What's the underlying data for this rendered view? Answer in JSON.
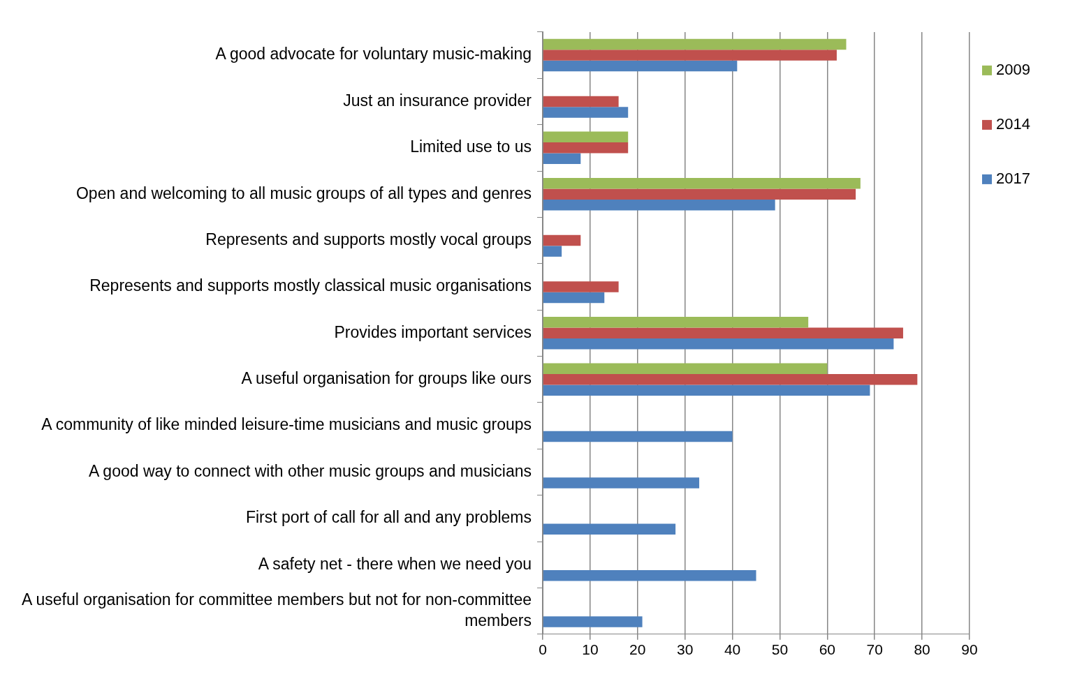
{
  "chart_data": {
    "type": "bar",
    "orientation": "horizontal",
    "categories": [
      "A good advocate for voluntary music-making",
      "Just an insurance provider",
      "Limited use to us",
      "Open and welcoming to all music groups of all types and genres",
      "Represents and supports mostly vocal groups",
      "Represents and supports mostly classical music organisations",
      "Provides important services",
      "A useful organisation for groups like ours",
      "A community of like minded leisure-time musicians and music groups",
      "A good way to connect with other music groups and musicians",
      "First port of call for all and any problems",
      "A safety net - there when we need you",
      "A useful organisation for committee members but not for non-committee members"
    ],
    "series": [
      {
        "name": "2009",
        "color": "#9bbb59",
        "values": [
          64,
          null,
          18,
          67,
          null,
          null,
          56,
          60,
          null,
          null,
          null,
          null,
          null
        ]
      },
      {
        "name": "2014",
        "color": "#c0504d",
        "values": [
          62,
          16,
          18,
          66,
          8,
          16,
          76,
          79,
          null,
          null,
          null,
          null,
          null
        ]
      },
      {
        "name": "2017",
        "color": "#4f81bd",
        "values": [
          41,
          18,
          8,
          49,
          4,
          13,
          74,
          69,
          40,
          33,
          28,
          45,
          21
        ]
      }
    ],
    "xlim": [
      0,
      90
    ],
    "xticks": [
      0,
      10,
      20,
      30,
      40,
      50,
      60,
      70,
      80,
      90
    ],
    "grid": "x",
    "legend": "right"
  }
}
